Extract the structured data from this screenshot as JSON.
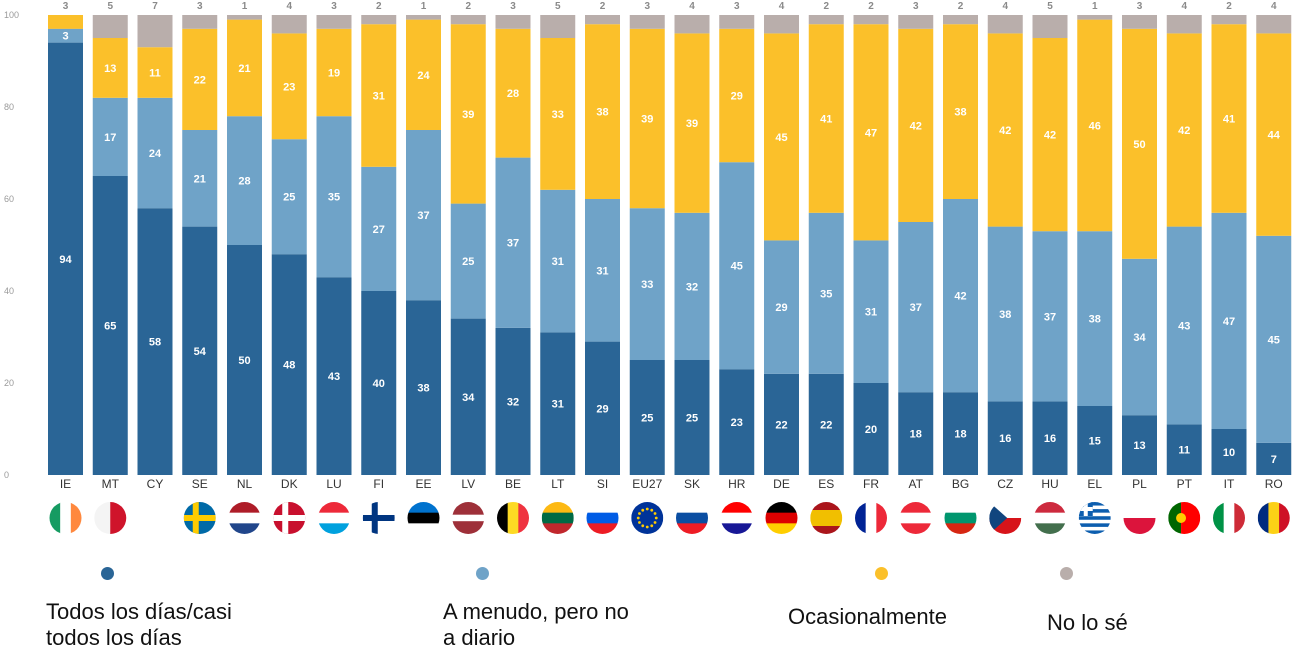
{
  "chart_data": {
    "type": "bar",
    "stacked": true,
    "categories": [
      "IE",
      "MT",
      "CY",
      "SE",
      "NL",
      "DK",
      "LU",
      "FI",
      "EE",
      "LV",
      "BE",
      "LT",
      "SI",
      "EU27",
      "SK",
      "HR",
      "DE",
      "ES",
      "FR",
      "AT",
      "BG",
      "CZ",
      "HU",
      "EL",
      "PL",
      "PT",
      "IT",
      "RO"
    ],
    "series": [
      {
        "name": "Todos los días/casi\ntodos los días",
        "color": "#2a6596",
        "label_color": "#ffffff",
        "values": [
          94,
          65,
          58,
          54,
          50,
          48,
          43,
          40,
          38,
          34,
          32,
          31,
          29,
          25,
          25,
          23,
          22,
          22,
          20,
          18,
          18,
          16,
          16,
          15,
          13,
          11,
          10,
          7
        ]
      },
      {
        "name": "A menudo, pero no\na diario",
        "color": "#6fa3c8",
        "label_color": "#ffffff",
        "values": [
          3,
          17,
          24,
          21,
          28,
          25,
          35,
          27,
          37,
          25,
          37,
          31,
          31,
          33,
          32,
          45,
          29,
          35,
          31,
          37,
          42,
          38,
          37,
          38,
          34,
          43,
          47,
          45
        ]
      },
      {
        "name": "Ocasionalmente",
        "color": "#fbc02a",
        "label_color": "#ffffff",
        "values": [
          null,
          13,
          11,
          22,
          21,
          23,
          19,
          31,
          24,
          39,
          28,
          33,
          38,
          39,
          39,
          29,
          45,
          41,
          47,
          42,
          38,
          42,
          42,
          46,
          50,
          42,
          41,
          44
        ]
      },
      {
        "name": "No lo sé",
        "color": "#b9aeab",
        "label_color": "#8a8a8a",
        "values": [
          3,
          5,
          7,
          3,
          1,
          4,
          3,
          2,
          1,
          2,
          3,
          5,
          2,
          3,
          4,
          3,
          4,
          2,
          2,
          3,
          2,
          4,
          5,
          1,
          3,
          4,
          2,
          4
        ]
      }
    ],
    "yticks": [
      0,
      20,
      40,
      60,
      80,
      100
    ],
    "ylim": [
      0,
      100
    ],
    "legend_position": "bottom"
  },
  "flags": [
    {
      "code": "IE",
      "stripes": "v",
      "colors": [
        "#169b62",
        "#ffffff",
        "#ff883e"
      ]
    },
    {
      "code": "MT",
      "stripes": "v",
      "colors": [
        "#f4f4f4",
        "#cf142b"
      ]
    },
    {
      "code": "CY",
      "stripes": "v",
      "colors": [
        "#ffffff"
      ],
      "emblem": "#d57800"
    },
    {
      "code": "SE",
      "cross": true,
      "colors": [
        "#006aa7",
        "#fecc00"
      ]
    },
    {
      "code": "NL",
      "stripes": "h",
      "colors": [
        "#ae1c28",
        "#ffffff",
        "#21468b"
      ]
    },
    {
      "code": "DK",
      "cross": true,
      "colors": [
        "#c8102e",
        "#ffffff"
      ]
    },
    {
      "code": "LU",
      "stripes": "h",
      "colors": [
        "#ed2939",
        "#ffffff",
        "#00a1de"
      ]
    },
    {
      "code": "FI",
      "cross": true,
      "colors": [
        "#ffffff",
        "#003580"
      ]
    },
    {
      "code": "EE",
      "stripes": "h",
      "colors": [
        "#0072ce",
        "#000000",
        "#ffffff"
      ]
    },
    {
      "code": "LV",
      "stripes": "h3",
      "colors": [
        "#9e3039",
        "#ffffff",
        "#9e3039"
      ]
    },
    {
      "code": "BE",
      "stripes": "v",
      "colors": [
        "#000000",
        "#fdda24",
        "#ef3340"
      ]
    },
    {
      "code": "LT",
      "stripes": "h",
      "colors": [
        "#fdb913",
        "#006a44",
        "#c1272d"
      ]
    },
    {
      "code": "SI",
      "stripes": "h",
      "colors": [
        "#ffffff",
        "#005ce5",
        "#ed1c24"
      ]
    },
    {
      "code": "EU27",
      "eu": true,
      "colors": [
        "#003399",
        "#ffcc00"
      ]
    },
    {
      "code": "SK",
      "stripes": "h",
      "colors": [
        "#ffffff",
        "#0b4ea2",
        "#ee1c25"
      ]
    },
    {
      "code": "HR",
      "stripes": "h",
      "colors": [
        "#ff0000",
        "#ffffff",
        "#171796"
      ]
    },
    {
      "code": "DE",
      "stripes": "h",
      "colors": [
        "#000000",
        "#dd0000",
        "#ffce00"
      ]
    },
    {
      "code": "ES",
      "stripes": "h4",
      "colors": [
        "#aa151b",
        "#f1bf00",
        "#aa151b"
      ]
    },
    {
      "code": "FR",
      "stripes": "v",
      "colors": [
        "#002395",
        "#ffffff",
        "#ed2939"
      ]
    },
    {
      "code": "AT",
      "stripes": "h",
      "colors": [
        "#ed2939",
        "#ffffff",
        "#ed2939"
      ]
    },
    {
      "code": "BG",
      "stripes": "h",
      "colors": [
        "#ffffff",
        "#00966e",
        "#d62612"
      ]
    },
    {
      "code": "CZ",
      "czech": true,
      "colors": [
        "#ffffff",
        "#d7141a",
        "#11457e"
      ]
    },
    {
      "code": "HU",
      "stripes": "h",
      "colors": [
        "#cd2a3e",
        "#ffffff",
        "#436f4d"
      ]
    },
    {
      "code": "EL",
      "greek": true,
      "colors": [
        "#0d5eaf",
        "#ffffff"
      ]
    },
    {
      "code": "PL",
      "stripes": "h2",
      "colors": [
        "#ffffff",
        "#dc143c"
      ]
    },
    {
      "code": "PT",
      "stripes": "v2",
      "colors": [
        "#006600",
        "#ff0000"
      ]
    },
    {
      "code": "IT",
      "stripes": "v",
      "colors": [
        "#009246",
        "#ffffff",
        "#ce2b37"
      ]
    },
    {
      "code": "RO",
      "stripes": "v",
      "colors": [
        "#002b7f",
        "#fcd116",
        "#ce1126"
      ]
    }
  ]
}
